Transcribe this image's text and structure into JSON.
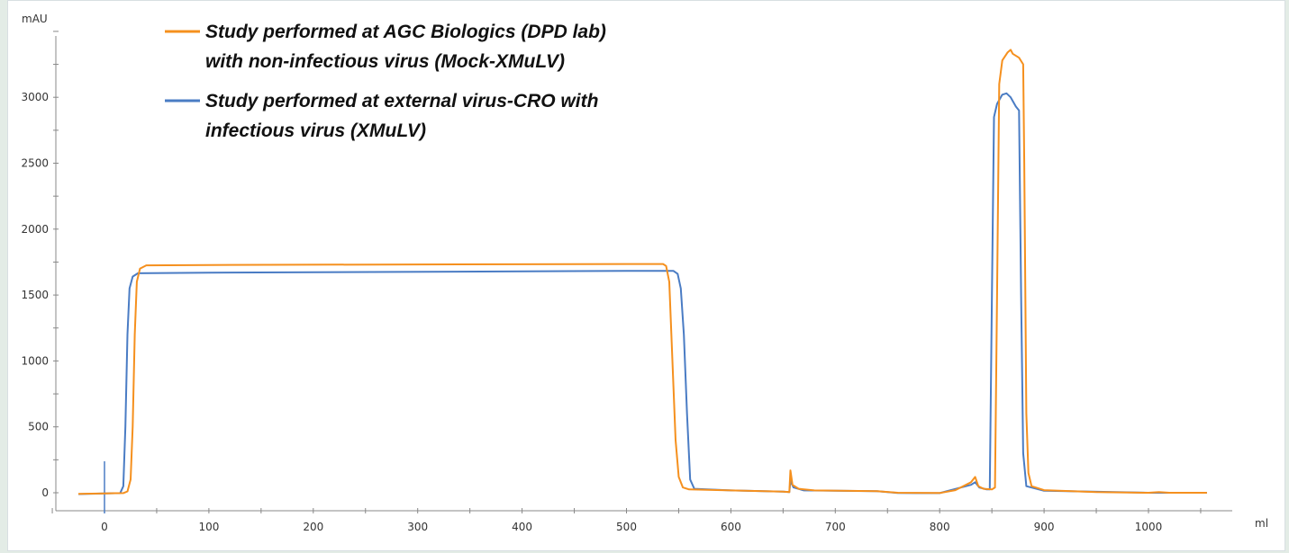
{
  "chart_data": {
    "type": "line",
    "title": "",
    "xlabel": "ml",
    "ylabel": "mAU",
    "xlim": [
      -50,
      1080
    ],
    "ylim": [
      -140,
      3650
    ],
    "x_ticks": [
      0,
      100,
      200,
      300,
      400,
      500,
      600,
      700,
      800,
      900,
      1000
    ],
    "y_ticks": [
      0,
      500,
      1000,
      1500,
      2000,
      2500,
      3000
    ],
    "grid": false,
    "legend_position": "top-left",
    "injection_marker_ml": 0,
    "series": [
      {
        "name": "Study performed at AGC Biologics (DPD lab) with non-infectious virus (Mock-XMuLV)",
        "legend_lines": [
          "Study performed at AGC Biologics (DPD lab)",
          "with non-infectious virus (Mock-XMuLV)"
        ],
        "color": "#F5901E",
        "points": [
          [
            -25,
            -8
          ],
          [
            0,
            -5
          ],
          [
            18,
            -3
          ],
          [
            22,
            10
          ],
          [
            25,
            100
          ],
          [
            27,
            500
          ],
          [
            29,
            1200
          ],
          [
            31,
            1600
          ],
          [
            34,
            1700
          ],
          [
            40,
            1725
          ],
          [
            100,
            1728
          ],
          [
            300,
            1732
          ],
          [
            500,
            1735
          ],
          [
            535,
            1735
          ],
          [
            538,
            1720
          ],
          [
            541,
            1600
          ],
          [
            544,
            1000
          ],
          [
            547,
            400
          ],
          [
            550,
            120
          ],
          [
            554,
            40
          ],
          [
            560,
            25
          ],
          [
            600,
            18
          ],
          [
            650,
            8
          ],
          [
            656,
            5
          ],
          [
            657,
            170
          ],
          [
            659,
            60
          ],
          [
            665,
            30
          ],
          [
            680,
            18
          ],
          [
            740,
            12
          ],
          [
            760,
            0
          ],
          [
            800,
            -2
          ],
          [
            815,
            20
          ],
          [
            830,
            80
          ],
          [
            834,
            120
          ],
          [
            837,
            50
          ],
          [
            842,
            30
          ],
          [
            850,
            25
          ],
          [
            853,
            40
          ],
          [
            855,
            1500
          ],
          [
            857,
            3100
          ],
          [
            860,
            3280
          ],
          [
            865,
            3340
          ],
          [
            868,
            3360
          ],
          [
            870,
            3330
          ],
          [
            876,
            3300
          ],
          [
            880,
            3250
          ],
          [
            881,
            2500
          ],
          [
            883,
            600
          ],
          [
            885,
            150
          ],
          [
            888,
            50
          ],
          [
            900,
            20
          ],
          [
            950,
            5
          ],
          [
            1000,
            0
          ],
          [
            1010,
            5
          ],
          [
            1020,
            0
          ],
          [
            1056,
            0
          ]
        ]
      },
      {
        "name": "Study performed at external virus-CRO with infectious virus (XMuLV)",
        "legend_lines": [
          "Study performed at external virus-CRO with",
          "infectious virus (XMuLV)"
        ],
        "color": "#4A7CC4",
        "points": [
          [
            -25,
            -10
          ],
          [
            0,
            -5
          ],
          [
            15,
            -3
          ],
          [
            18,
            50
          ],
          [
            20,
            500
          ],
          [
            22,
            1200
          ],
          [
            24,
            1550
          ],
          [
            27,
            1640
          ],
          [
            32,
            1665
          ],
          [
            100,
            1670
          ],
          [
            500,
            1683
          ],
          [
            545,
            1683
          ],
          [
            549,
            1660
          ],
          [
            552,
            1550
          ],
          [
            555,
            1200
          ],
          [
            558,
            600
          ],
          [
            561,
            100
          ],
          [
            565,
            30
          ],
          [
            600,
            18
          ],
          [
            650,
            8
          ],
          [
            656,
            5
          ],
          [
            657,
            90
          ],
          [
            660,
            40
          ],
          [
            670,
            18
          ],
          [
            740,
            12
          ],
          [
            760,
            -2
          ],
          [
            800,
            -3
          ],
          [
            830,
            60
          ],
          [
            834,
            80
          ],
          [
            838,
            40
          ],
          [
            845,
            25
          ],
          [
            848,
            25
          ],
          [
            850,
            1500
          ],
          [
            852,
            2850
          ],
          [
            855,
            2950
          ],
          [
            860,
            3020
          ],
          [
            864,
            3030
          ],
          [
            868,
            3000
          ],
          [
            873,
            2930
          ],
          [
            876,
            2900
          ],
          [
            878,
            1500
          ],
          [
            880,
            300
          ],
          [
            883,
            50
          ],
          [
            900,
            15
          ],
          [
            1000,
            0
          ],
          [
            1056,
            0
          ]
        ]
      }
    ]
  }
}
